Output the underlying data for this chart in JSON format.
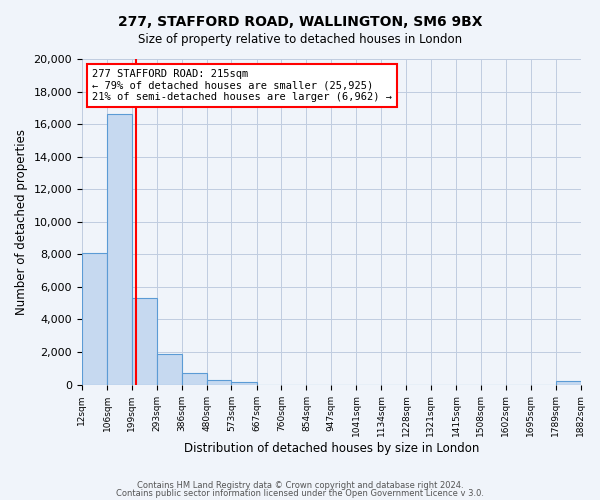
{
  "title": "277, STAFFORD ROAD, WALLINGTON, SM6 9BX",
  "subtitle": "Size of property relative to detached houses in London",
  "xlabel": "Distribution of detached houses by size in London",
  "ylabel": "Number of detached properties",
  "bin_edges": [
    12,
    106,
    199,
    293,
    386,
    480,
    573,
    667,
    760,
    854,
    947,
    1041,
    1134,
    1228,
    1321,
    1415,
    1508,
    1602,
    1695,
    1789,
    1882
  ],
  "bin_labels": [
    "12sqm",
    "106sqm",
    "199sqm",
    "293sqm",
    "386sqm",
    "480sqm",
    "573sqm",
    "667sqm",
    "760sqm",
    "854sqm",
    "947sqm",
    "1041sqm",
    "1134sqm",
    "1228sqm",
    "1321sqm",
    "1415sqm",
    "1508sqm",
    "1602sqm",
    "1695sqm",
    "1789sqm",
    "1882sqm"
  ],
  "bar_heights": [
    8100,
    16600,
    5300,
    1850,
    700,
    300,
    150,
    0,
    0,
    0,
    0,
    0,
    0,
    0,
    0,
    0,
    0,
    0,
    0,
    200
  ],
  "bar_color": "#c6d9f0",
  "bar_edgecolor": "#5b9bd5",
  "property_size": 215,
  "vline_x": 215,
  "vline_color": "red",
  "annotation_title": "277 STAFFORD ROAD: 215sqm",
  "annotation_line1": "← 79% of detached houses are smaller (25,925)",
  "annotation_line2": "21% of semi-detached houses are larger (6,962) →",
  "annotation_box_color": "white",
  "annotation_box_edgecolor": "red",
  "ylim": [
    0,
    20000
  ],
  "yticks": [
    0,
    2000,
    4000,
    6000,
    8000,
    10000,
    12000,
    14000,
    16000,
    18000,
    20000
  ],
  "footer1": "Contains HM Land Registry data © Crown copyright and database right 2024.",
  "footer2": "Contains public sector information licensed under the Open Government Licence v 3.0.",
  "bg_color": "#f0f4fa",
  "grid_color": "#c0cce0"
}
